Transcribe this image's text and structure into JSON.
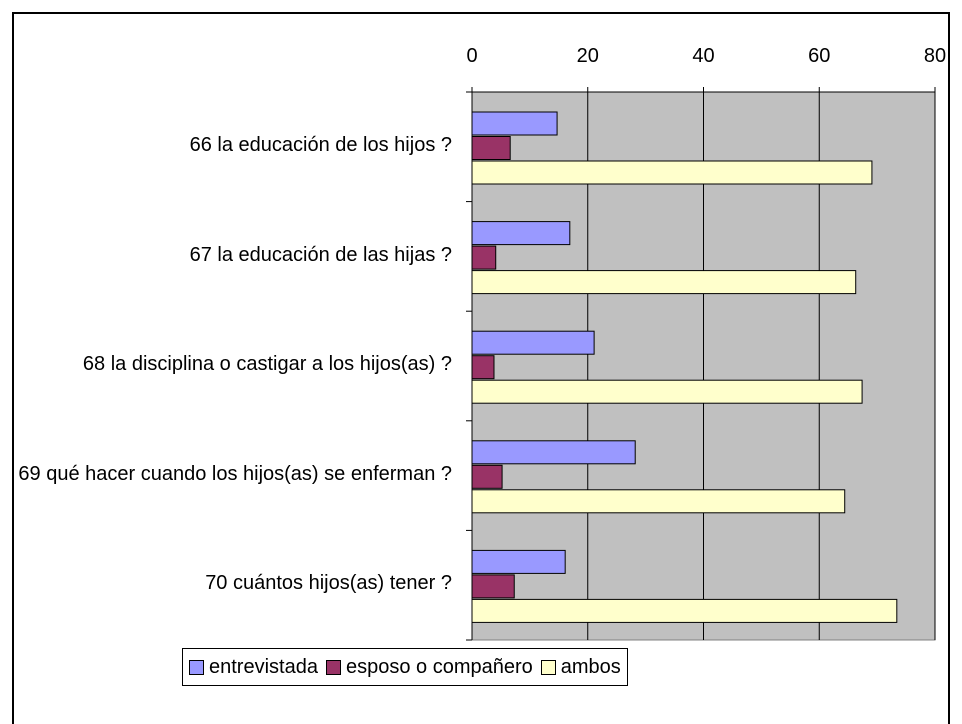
{
  "chart_data": {
    "type": "bar",
    "orientation": "horizontal",
    "categories": [
      "66 la educación de los hijos ?",
      "67 la educación de las hijas ?",
      "68 la disciplina o castigar a los hijos(as) ?",
      "69 qué hacer cuando los hijos(as) se enferman ?",
      "70 cuántos hijos(as) tener ?"
    ],
    "series": [
      {
        "name": "entrevistada",
        "color": "#9999ff",
        "values": [
          14.7,
          16.9,
          21.1,
          28.2,
          16.1
        ]
      },
      {
        "name": "esposo o compañero",
        "color": "#993366",
        "values": [
          6.6,
          4.1,
          3.8,
          5.2,
          7.3
        ]
      },
      {
        "name": "ambos",
        "color": "#ffffcc",
        "values": [
          69.1,
          66.3,
          67.4,
          64.4,
          73.4
        ]
      }
    ],
    "xlim": [
      0,
      80
    ],
    "xticks": [
      0,
      20,
      40,
      60,
      80
    ],
    "grid": true,
    "legend": "bottom",
    "plot_background": "#c0c0c0"
  }
}
